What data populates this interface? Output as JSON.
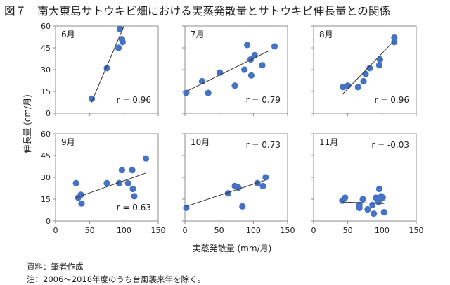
{
  "figure": {
    "title": "図７　南大東島サトウキビ畑における実蒸発散量とサトウキビ伸長量との関係",
    "source": "資料：筆者作成",
    "note": "注：2006～2018年度のうち台風襲来年を除く。"
  },
  "chart_data": {
    "type": "scatter",
    "xlabel": "実蒸発散量 (mm/月)",
    "ylabel": "伸長量 (cm/月)",
    "xlim": [
      0,
      150
    ],
    "ylim": [
      0,
      60
    ],
    "xticks": [
      0,
      50,
      100,
      150
    ],
    "yticks": [
      0,
      15,
      30,
      45,
      60
    ],
    "grid": false,
    "marker_color": "#4472c4",
    "line_color": "#333333",
    "panels": [
      {
        "label": "6月",
        "r_text": "r = 0.96",
        "points": [
          [
            53,
            10
          ],
          [
            75,
            31
          ],
          [
            92,
            45
          ],
          [
            94,
            58
          ],
          [
            97,
            51
          ],
          [
            98,
            49
          ]
        ],
        "trend": [
          [
            52,
            7
          ],
          [
            100,
            60
          ]
        ]
      },
      {
        "label": "7月",
        "r_text": "r = 0.79",
        "points": [
          [
            2,
            14
          ],
          [
            25,
            22
          ],
          [
            34,
            14
          ],
          [
            51,
            28
          ],
          [
            73,
            19
          ],
          [
            87,
            30
          ],
          [
            91,
            47
          ],
          [
            96,
            37
          ],
          [
            97,
            26
          ],
          [
            102,
            40
          ],
          [
            113,
            33
          ],
          [
            131,
            46
          ]
        ],
        "trend": [
          [
            2,
            15
          ],
          [
            123,
            43
          ]
        ]
      },
      {
        "label": "8月",
        "r_text": "r = 0.96",
        "points": [
          [
            43,
            18
          ],
          [
            50,
            19
          ],
          [
            65,
            18
          ],
          [
            73,
            22
          ],
          [
            76,
            27
          ],
          [
            82,
            31
          ],
          [
            96,
            33
          ],
          [
            97,
            37
          ],
          [
            118,
            52
          ],
          [
            118,
            49
          ]
        ],
        "trend": [
          [
            42,
            13
          ],
          [
            118,
            50
          ]
        ]
      },
      {
        "label": "9月",
        "r_text": "r = 0.63",
        "points": [
          [
            30,
            26
          ],
          [
            33,
            16
          ],
          [
            37,
            18
          ],
          [
            38,
            12
          ],
          [
            75,
            26
          ],
          [
            93,
            26
          ],
          [
            97,
            35
          ],
          [
            106,
            26
          ],
          [
            112,
            35
          ],
          [
            113,
            22
          ],
          [
            115,
            17
          ],
          [
            132,
            43
          ]
        ],
        "trend": [
          [
            30,
            16
          ],
          [
            132,
            33
          ]
        ]
      },
      {
        "label": "10月",
        "r_text": "r = 0.73",
        "points": [
          [
            2,
            9
          ],
          [
            63,
            19
          ],
          [
            73,
            24
          ],
          [
            78,
            23
          ],
          [
            84,
            10
          ],
          [
            106,
            26
          ],
          [
            114,
            24
          ],
          [
            118,
            30
          ]
        ],
        "trend": [
          [
            2,
            10
          ],
          [
            117,
            28
          ]
        ]
      },
      {
        "label": "11月",
        "r_text": "r = -0.03",
        "points": [
          [
            42,
            14
          ],
          [
            46,
            16
          ],
          [
            67,
            11
          ],
          [
            67,
            9
          ],
          [
            72,
            15
          ],
          [
            79,
            8
          ],
          [
            86,
            11
          ],
          [
            88,
            5
          ],
          [
            91,
            16
          ],
          [
            95,
            13
          ],
          [
            96,
            22
          ],
          [
            99,
            17
          ],
          [
            101,
            16
          ],
          [
            103,
            6
          ]
        ],
        "trend": [
          [
            42,
            13
          ],
          [
            103,
            12
          ]
        ]
      }
    ]
  }
}
